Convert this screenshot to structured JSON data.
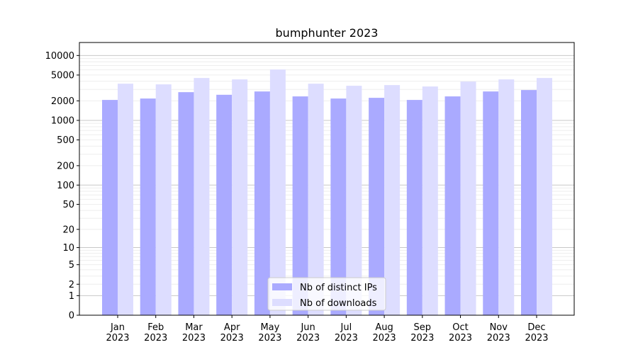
{
  "chart_data": {
    "type": "bar",
    "title": "bumphunter 2023",
    "xlabel": "",
    "ylabel": "",
    "yscale": "log10(y+1)",
    "ylim": [
      0,
      15849
    ],
    "grid": true,
    "legend_placement": "lower-center",
    "categories": [
      "Jan\n2023",
      "Feb\n2023",
      "Mar\n2023",
      "Apr\n2023",
      "May\n2023",
      "Jun\n2023",
      "Jul\n2023",
      "Aug\n2023",
      "Sep\n2023",
      "Oct\n2023",
      "Nov\n2023",
      "Dec\n2023"
    ],
    "yticks": [
      0,
      1,
      2,
      5,
      10,
      20,
      50,
      100,
      200,
      500,
      1000,
      2000,
      5000,
      10000
    ],
    "series": [
      {
        "name": "Nb of distinct IPs",
        "color": "#aaaaff",
        "values": [
          2066,
          2173,
          2723,
          2482,
          2792,
          2342,
          2173,
          2228,
          2066,
          2342,
          2792,
          2936
        ]
      },
      {
        "name": "Nb of downloads",
        "color": "#ddddff",
        "values": [
          3680,
          3590,
          4500,
          4280,
          6080,
          3680,
          3415,
          3500,
          3330,
          3970,
          4280,
          4500
        ]
      }
    ]
  }
}
